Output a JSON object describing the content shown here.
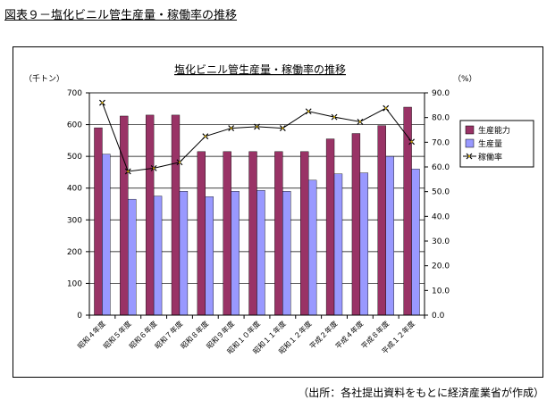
{
  "figure_title": "図表９－塩化ビニル管生産量・稼働率の推移",
  "source_note": "（出所：各社提出資料をもとに経済産業省が作成）",
  "colors": {
    "capacity": "#993366",
    "production": "#9999ff",
    "rate_line": "#000000",
    "rate_marker": "#c8a000",
    "grid": "#000000",
    "plot_bg": "#ffffff"
  },
  "chart_data": {
    "type": "bar",
    "title": "塩化ビニル管生産量・稼働率の推移",
    "left_unit": "（千トン）",
    "right_unit": "（%）",
    "categories": [
      "昭和４年度",
      "昭和５年度",
      "昭和６年度",
      "昭和７年度",
      "昭和８年度",
      "昭和９年度",
      "昭和１０年度",
      "昭和１１年度",
      "昭和１２年度",
      "平成２年度",
      "平成４年度",
      "平成８年度",
      "平成１２年度"
    ],
    "series": [
      {
        "name": "生産能力",
        "axis": "left",
        "type": "bar",
        "values": [
          590,
          627,
          630,
          630,
          515,
          515,
          515,
          515,
          515,
          555,
          572,
          597,
          655
        ]
      },
      {
        "name": "生産量",
        "axis": "left",
        "type": "bar",
        "values": [
          507,
          365,
          375,
          390,
          373,
          390,
          393,
          390,
          425,
          445,
          448,
          500,
          460
        ]
      },
      {
        "name": "稼働率",
        "axis": "right",
        "type": "line",
        "values": [
          86.0,
          58.2,
          59.5,
          61.9,
          72.4,
          75.7,
          76.3,
          75.7,
          82.5,
          80.2,
          78.3,
          83.8,
          70.2
        ]
      }
    ],
    "left_ylim": [
      0,
      700
    ],
    "left_yticks": [
      "0",
      "100",
      "200",
      "300",
      "400",
      "500",
      "600",
      "700"
    ],
    "right_ylim": [
      0,
      90
    ],
    "right_yticks": [
      "0.0",
      "10.0",
      "20.0",
      "30.0",
      "40.0",
      "50.0",
      "60.0",
      "70.0",
      "80.0",
      "90.0"
    ],
    "grid": "horizontal",
    "legend_position": "right"
  }
}
